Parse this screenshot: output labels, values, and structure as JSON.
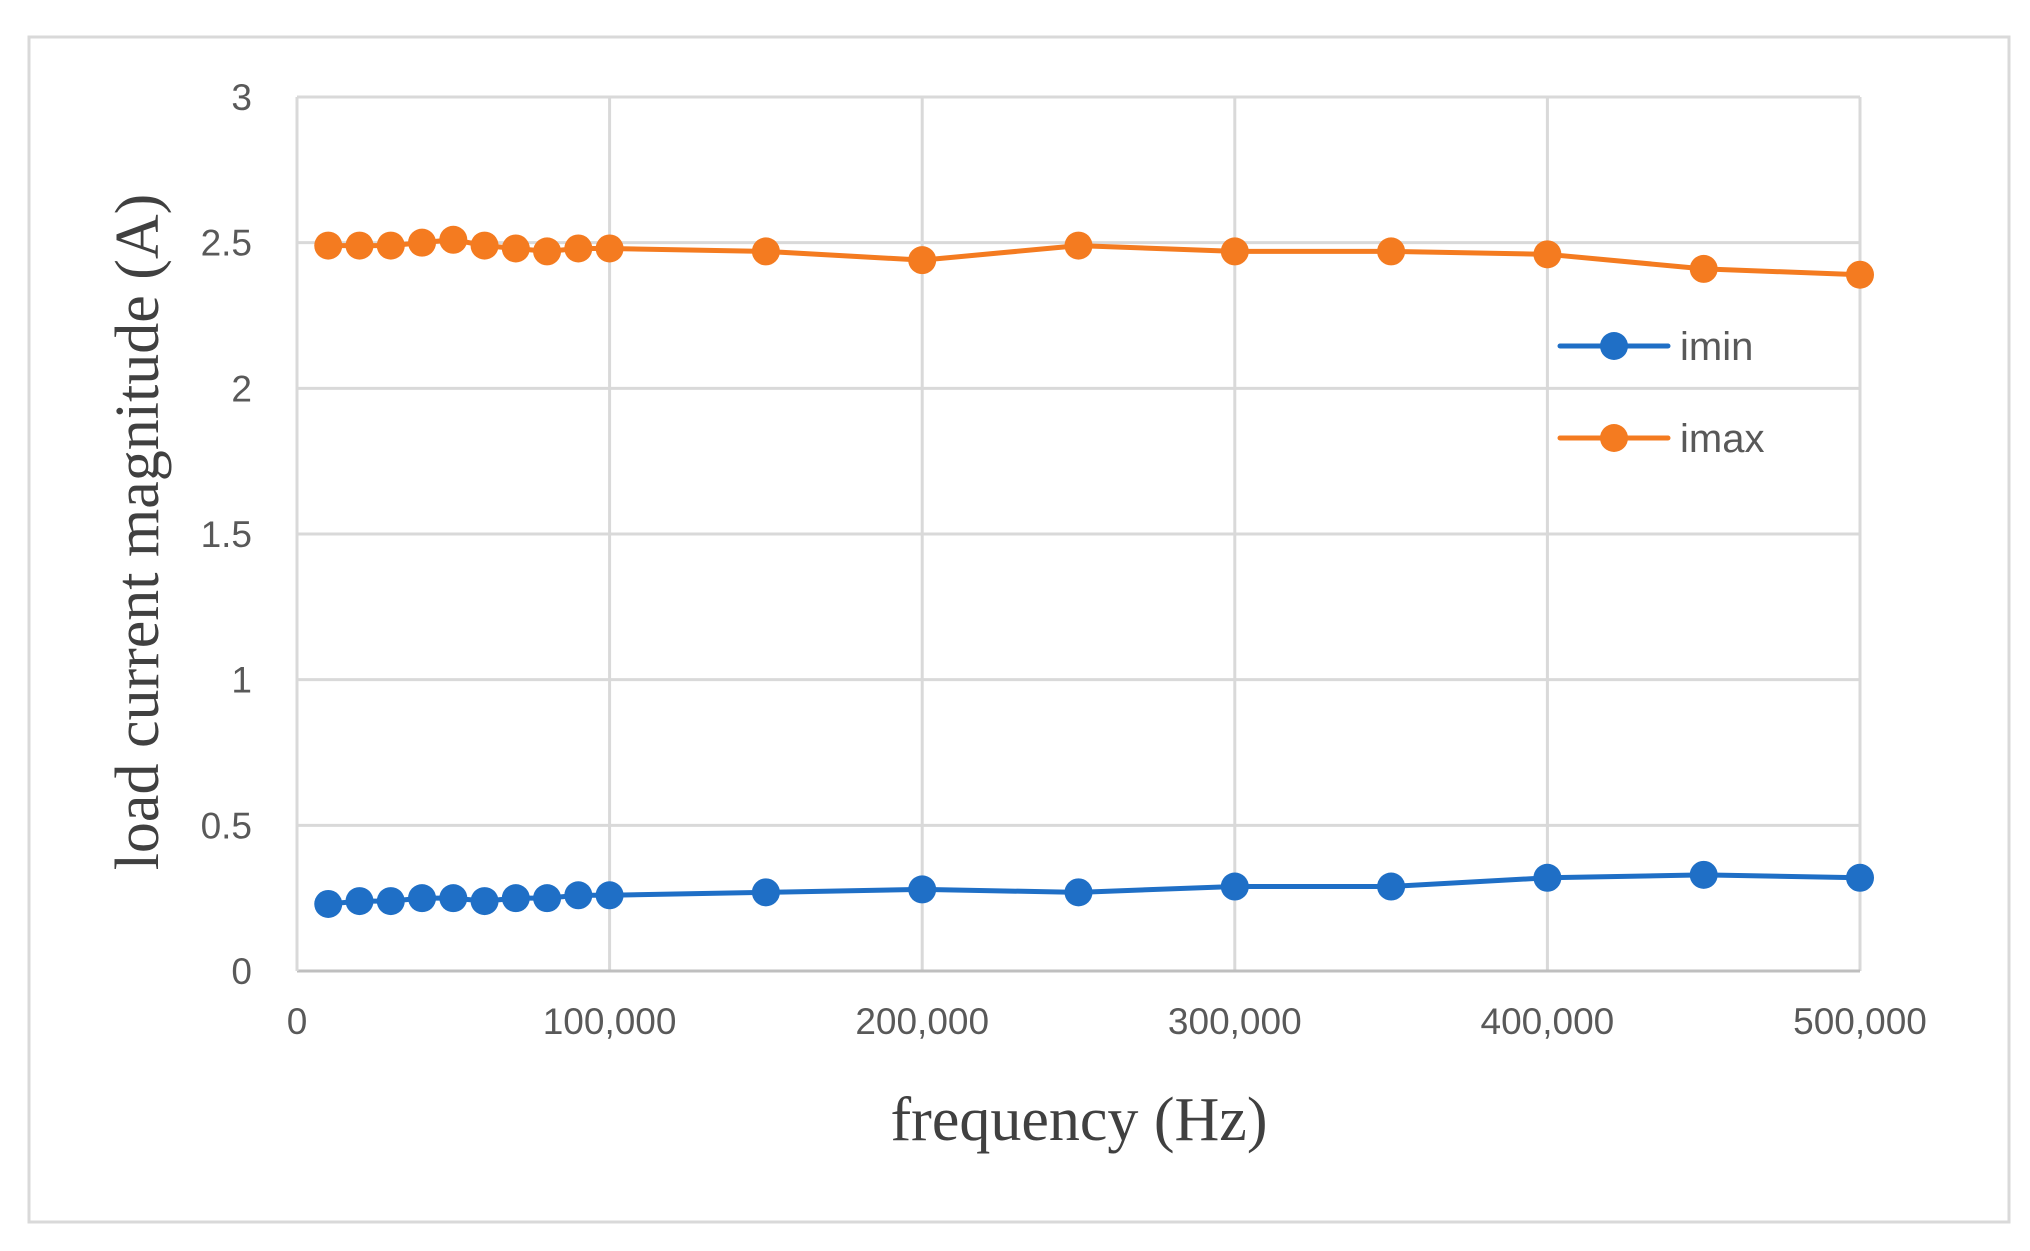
{
  "chart_data": {
    "type": "line",
    "title": "",
    "xlabel": "frequency (Hz)",
    "ylabel": "load current magnitude (A)",
    "xlim": [
      0,
      500000
    ],
    "ylim": [
      0,
      3
    ],
    "grid": true,
    "legend_position": "right",
    "x_ticks": [
      {
        "value": 0,
        "label": "0"
      },
      {
        "value": 100000,
        "label": "100,000"
      },
      {
        "value": 200000,
        "label": "200,000"
      },
      {
        "value": 300000,
        "label": "300,000"
      },
      {
        "value": 400000,
        "label": "400,000"
      },
      {
        "value": 500000,
        "label": "500,000"
      }
    ],
    "y_ticks": [
      {
        "value": 0,
        "label": "0"
      },
      {
        "value": 0.5,
        "label": "0.5"
      },
      {
        "value": 1,
        "label": "1"
      },
      {
        "value": 1.5,
        "label": "1.5"
      },
      {
        "value": 2,
        "label": "2"
      },
      {
        "value": 2.5,
        "label": "2.5"
      },
      {
        "value": 3,
        "label": "3"
      }
    ],
    "x": [
      10000,
      20000,
      30000,
      40000,
      50000,
      60000,
      70000,
      80000,
      90000,
      100000,
      150000,
      200000,
      250000,
      300000,
      350000,
      400000,
      450000,
      500000
    ],
    "series": [
      {
        "name": "imin",
        "color": "#1f6fc6",
        "values": [
          0.23,
          0.24,
          0.24,
          0.25,
          0.25,
          0.24,
          0.25,
          0.25,
          0.26,
          0.26,
          0.27,
          0.28,
          0.27,
          0.29,
          0.29,
          0.32,
          0.33,
          0.32
        ]
      },
      {
        "name": "imax",
        "color": "#f47b20",
        "values": [
          2.49,
          2.49,
          2.49,
          2.5,
          2.51,
          2.49,
          2.48,
          2.47,
          2.48,
          2.48,
          2.47,
          2.44,
          2.49,
          2.47,
          2.47,
          2.46,
          2.41,
          2.39
        ]
      }
    ]
  }
}
